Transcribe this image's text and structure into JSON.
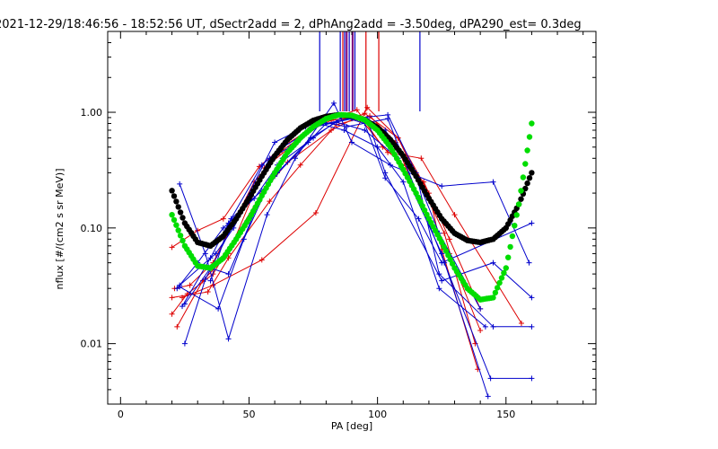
{
  "chart_data": {
    "type": "line",
    "title": "2021-12-29/18:46:56 - 18:52:56 UT, dSectr2add = 2, dPhAng2add = -3.50deg, dPA290_est=   0.3deg",
    "xlabel": "PA [deg]",
    "ylabel": "nflux [#/(cm2 s sr MeV)]",
    "xlim": [
      -5,
      185
    ],
    "ylim": [
      0.003,
      5
    ],
    "yscale": "log",
    "x_ticks": [
      0,
      50,
      100,
      150
    ],
    "x_tick_labels": [
      "0",
      "50",
      "100",
      "150"
    ],
    "y_ticks": [
      0.01,
      0.1,
      1
    ],
    "y_tick_labels": [
      "0.01",
      "0.10",
      "1.00"
    ],
    "colors": {
      "red": "#dd0000",
      "blue": "#0000cc",
      "black": "#000000",
      "green": "#00dd00",
      "purple": "#7a0077"
    },
    "vertical_markers": [
      {
        "x": 77.5,
        "color": "#0000cc"
      },
      {
        "x": 85.5,
        "color": "#0000cc"
      },
      {
        "x": 86.5,
        "color": "#dd0000"
      },
      {
        "x": 87.2,
        "color": "#0000cc"
      },
      {
        "x": 88.0,
        "color": "#7a0077"
      },
      {
        "x": 89.0,
        "color": "#0000cc"
      },
      {
        "x": 90.3,
        "color": "#7a0077"
      },
      {
        "x": 91.2,
        "color": "#0000cc"
      },
      {
        "x": 95.5,
        "color": "#dd0000"
      },
      {
        "x": 100.5,
        "color": "#dd0000"
      },
      {
        "x": 116.5,
        "color": "#0000cc"
      }
    ],
    "series": [
      {
        "color": "#dd0000",
        "x": [
          20,
          26,
          36,
          55,
          65,
          82,
          95,
          108,
          120,
          125,
          139
        ],
        "y": [
          0.018,
          0.027,
          0.04,
          0.2,
          0.37,
          0.7,
          0.98,
          0.6,
          0.2,
          0.065,
          0.006
        ]
      },
      {
        "color": "#dd0000",
        "x": [
          20,
          34,
          42,
          58,
          70,
          84,
          97,
          107,
          116,
          128,
          140
        ],
        "y": [
          0.025,
          0.028,
          0.055,
          0.17,
          0.35,
          0.78,
          0.93,
          0.55,
          0.18,
          0.06,
          0.013
        ]
      },
      {
        "color": "#dd0000",
        "x": [
          21,
          27,
          36,
          52,
          62,
          78,
          92,
          102,
          118,
          128,
          140
        ],
        "y": [
          0.03,
          0.032,
          0.05,
          0.25,
          0.45,
          0.82,
          1.05,
          0.5,
          0.25,
          0.08,
          0.02
        ]
      },
      {
        "color": "#dd0000",
        "x": [
          22,
          32,
          42,
          56,
          66,
          80,
          93,
          104,
          117,
          130,
          156
        ],
        "y": [
          0.014,
          0.035,
          0.06,
          0.33,
          0.5,
          0.85,
          0.9,
          0.45,
          0.4,
          0.13,
          0.015
        ]
      },
      {
        "color": "#dd0000",
        "x": [
          24,
          36,
          55,
          76,
          96,
          108,
          126,
          138
        ],
        "y": [
          0.025,
          0.032,
          0.053,
          0.135,
          1.1,
          0.6,
          0.09,
          0.01
        ]
      },
      {
        "color": "#dd0000",
        "x": [
          20,
          30,
          40,
          54,
          63,
          73,
          82,
          90
        ],
        "y": [
          0.068,
          0.095,
          0.12,
          0.34,
          0.5,
          0.7,
          0.85,
          0.9
        ]
      },
      {
        "color": "#0000cc",
        "x": [
          23,
          33,
          42,
          57,
          68,
          83,
          90,
          105,
          125,
          145,
          159
        ],
        "y": [
          0.24,
          0.06,
          0.011,
          0.13,
          0.4,
          1.2,
          0.55,
          0.35,
          0.23,
          0.25,
          0.05
        ]
      },
      {
        "color": "#0000cc",
        "x": [
          25,
          33,
          45,
          60,
          72,
          84,
          95,
          103,
          116,
          125,
          160
        ],
        "y": [
          0.01,
          0.036,
          0.12,
          0.55,
          0.75,
          0.95,
          0.8,
          0.27,
          0.12,
          0.05,
          0.11
        ]
      },
      {
        "color": "#0000cc",
        "x": [
          23,
          38,
          48,
          61,
          75,
          86,
          96,
          103,
          125,
          145,
          160
        ],
        "y": [
          0.031,
          0.02,
          0.08,
          0.35,
          0.6,
          0.9,
          0.88,
          0.3,
          0.035,
          0.05,
          0.025
        ]
      },
      {
        "color": "#0000cc",
        "x": [
          22,
          30,
          40,
          52,
          63,
          77,
          87,
          100,
          110,
          124,
          142
        ],
        "y": [
          0.03,
          0.05,
          0.1,
          0.18,
          0.4,
          0.8,
          0.7,
          0.5,
          0.25,
          0.03,
          0.014
        ]
      },
      {
        "color": "#0000cc",
        "x": [
          24,
          35,
          42,
          55,
          62,
          76,
          90,
          104,
          115,
          124,
          145,
          160
        ],
        "y": [
          0.021,
          0.055,
          0.11,
          0.35,
          0.48,
          0.75,
          0.88,
          0.95,
          0.3,
          0.04,
          0.014,
          0.014
        ]
      },
      {
        "color": "#0000cc",
        "x": [
          23,
          37,
          44,
          58,
          66,
          79,
          88,
          104,
          126,
          144,
          160
        ],
        "y": [
          0.032,
          0.06,
          0.1,
          0.4,
          0.5,
          0.82,
          0.75,
          0.88,
          0.05,
          0.005,
          0.005
        ]
      },
      {
        "color": "#0000cc",
        "x": [
          25,
          35,
          42,
          54,
          61,
          74,
          84,
          95,
          108,
          125,
          143
        ],
        "y": [
          0.022,
          0.045,
          0.04,
          0.17,
          0.3,
          0.6,
          0.82,
          0.7,
          0.4,
          0.06,
          0.0035
        ]
      },
      {
        "color": "#0000cc",
        "x": [
          35,
          43,
          55,
          60,
          73,
          80,
          91,
          103,
          115,
          124,
          140
        ],
        "y": [
          0.035,
          0.12,
          0.21,
          0.28,
          0.55,
          0.8,
          0.9,
          0.7,
          0.28,
          0.09,
          0.02
        ]
      },
      {
        "color": "#000000",
        "thick": true,
        "x": [
          20,
          25,
          30,
          35,
          40,
          45,
          50,
          55,
          60,
          65,
          70,
          75,
          80,
          85,
          90,
          95,
          100,
          105,
          110,
          115,
          120,
          125,
          130,
          135,
          140,
          145,
          150,
          155,
          160
        ],
        "y": [
          0.21,
          0.11,
          0.075,
          0.07,
          0.085,
          0.12,
          0.18,
          0.28,
          0.42,
          0.58,
          0.73,
          0.85,
          0.92,
          0.95,
          0.93,
          0.86,
          0.74,
          0.58,
          0.42,
          0.28,
          0.18,
          0.12,
          0.09,
          0.078,
          0.075,
          0.08,
          0.1,
          0.16,
          0.3
        ]
      },
      {
        "color": "#00dd00",
        "thick": true,
        "x": [
          20,
          25,
          30,
          35,
          40,
          45,
          50,
          55,
          60,
          65,
          70,
          75,
          80,
          85,
          90,
          95,
          100,
          105,
          110,
          115,
          120,
          125,
          130,
          135,
          140,
          145,
          150,
          155,
          160
        ],
        "y": [
          0.13,
          0.07,
          0.047,
          0.045,
          0.055,
          0.08,
          0.12,
          0.19,
          0.3,
          0.45,
          0.6,
          0.75,
          0.88,
          0.95,
          0.94,
          0.86,
          0.7,
          0.5,
          0.32,
          0.2,
          0.12,
          0.075,
          0.045,
          0.03,
          0.024,
          0.025,
          0.045,
          0.16,
          0.8
        ]
      }
    ]
  }
}
